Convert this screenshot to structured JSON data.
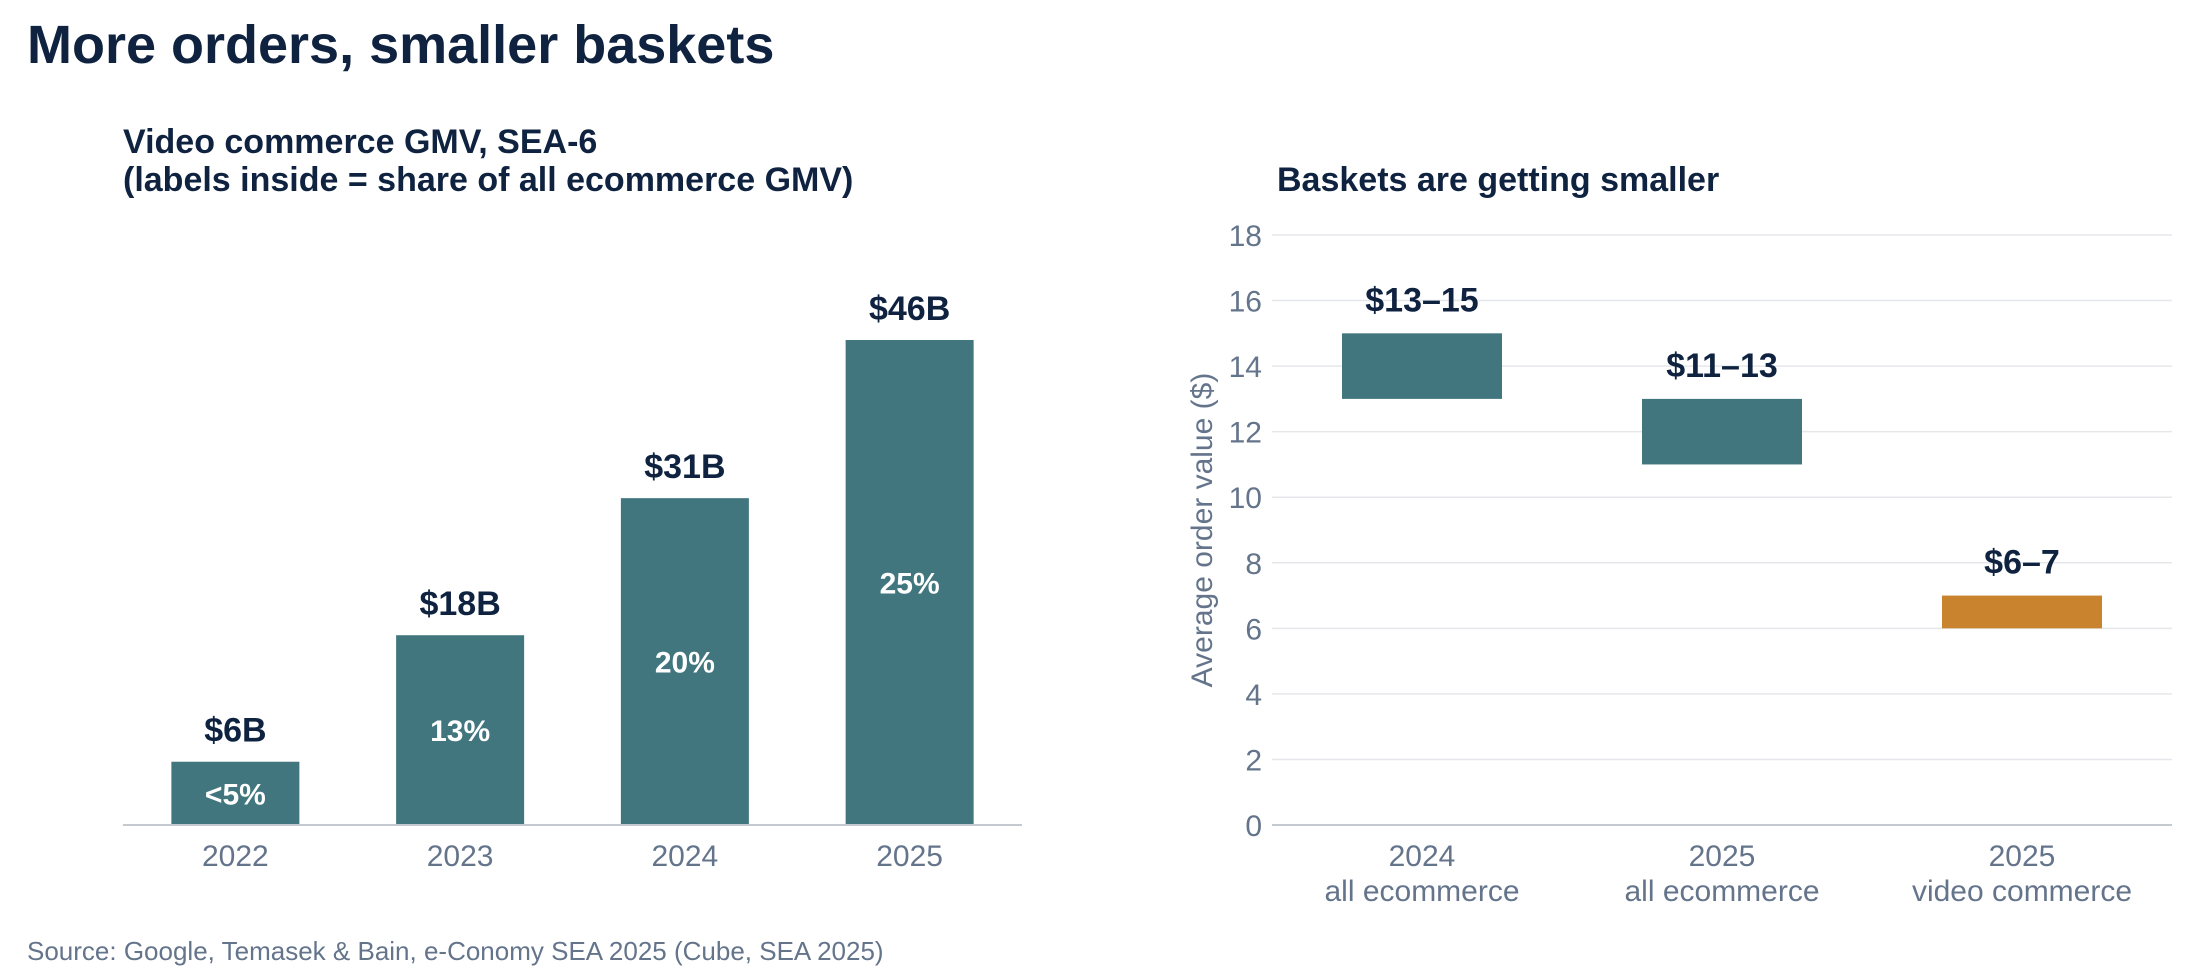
{
  "page": {
    "title": "More orders, smaller baskets",
    "source": "Source: Google, Temasek & Bain, e-Conomy SEA 2025 (Cube, SEA 2025)"
  },
  "colors": {
    "teal": "#41767f",
    "orange": "#c9832e",
    "title": "#0f2340",
    "muted": "#64748b",
    "grid": "#e5e7eb",
    "axis": "#c5cad1"
  },
  "chart_data": [
    {
      "type": "bar",
      "title": "Video commerce GMV, SEA-6",
      "subtitle": "(labels inside = share of all ecommerce GMV)",
      "categories": [
        "2022",
        "2023",
        "2024",
        "2025"
      ],
      "values": [
        6,
        18,
        31,
        46
      ],
      "value_labels": [
        "$6B",
        "$18B",
        "$31B",
        "$46B"
      ],
      "inside_labels": [
        "<5%",
        "13%",
        "20%",
        "25%"
      ],
      "ylim": [
        0,
        50
      ],
      "grid": false
    },
    {
      "type": "bar",
      "title": "Baskets are getting smaller",
      "ylabel": "Average order value ($)",
      "ylim": [
        0,
        18
      ],
      "yticks": [
        0,
        2,
        4,
        6,
        8,
        10,
        12,
        14,
        16,
        18
      ],
      "grid": true,
      "categories": [
        {
          "line1": "2024",
          "line2": "all ecommerce"
        },
        {
          "line1": "2025",
          "line2": "all ecommerce"
        },
        {
          "line1": "2025",
          "line2": "video commerce"
        }
      ],
      "ranges": [
        {
          "low": 13,
          "high": 15,
          "label": "$13–15",
          "color": "#41767f"
        },
        {
          "low": 11,
          "high": 13,
          "label": "$11–13",
          "color": "#41767f"
        },
        {
          "low": 6,
          "high": 7,
          "label": "$6–7",
          "color": "#c9832e"
        }
      ]
    }
  ]
}
